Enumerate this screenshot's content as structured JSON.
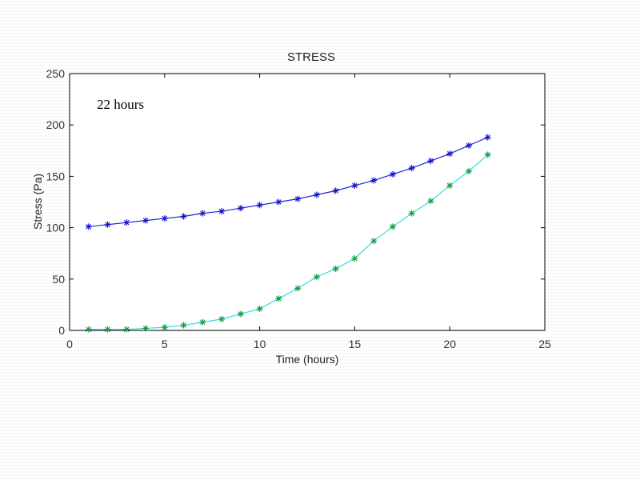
{
  "chart_data": {
    "type": "line",
    "title": "STRESS",
    "xlabel": "Time (hours)",
    "ylabel": "Stress (Pa)",
    "xlim": [
      0,
      25
    ],
    "ylim": [
      0,
      250
    ],
    "xticks": [
      0,
      5,
      10,
      15,
      20,
      25
    ],
    "yticks": [
      0,
      50,
      100,
      150,
      200,
      250
    ],
    "grid": false,
    "annotation": "22 hours",
    "series": [
      {
        "line_color": "#2222dd",
        "marker_color": "#1111cc",
        "marker": "asterisk",
        "x": [
          1,
          2,
          3,
          4,
          5,
          6,
          7,
          8,
          9,
          10,
          11,
          12,
          13,
          14,
          15,
          16,
          17,
          18,
          19,
          20,
          21,
          22
        ],
        "values": [
          101,
          103,
          105,
          107,
          109,
          111,
          114,
          116,
          119,
          122,
          125,
          128,
          132,
          136,
          141,
          146,
          152,
          158,
          165,
          172,
          180,
          188
        ]
      },
      {
        "line_color": "#33dddd",
        "marker_color": "#119944",
        "marker": "asterisk",
        "x": [
          1,
          2,
          3,
          4,
          5,
          6,
          7,
          8,
          9,
          10,
          11,
          12,
          13,
          14,
          15,
          16,
          17,
          18,
          19,
          20,
          21,
          22
        ],
        "values": [
          1,
          1,
          1,
          2,
          3,
          5,
          8,
          11,
          16,
          21,
          31,
          41,
          52,
          60,
          70,
          87,
          101,
          114,
          126,
          141,
          155,
          171
        ]
      }
    ]
  }
}
